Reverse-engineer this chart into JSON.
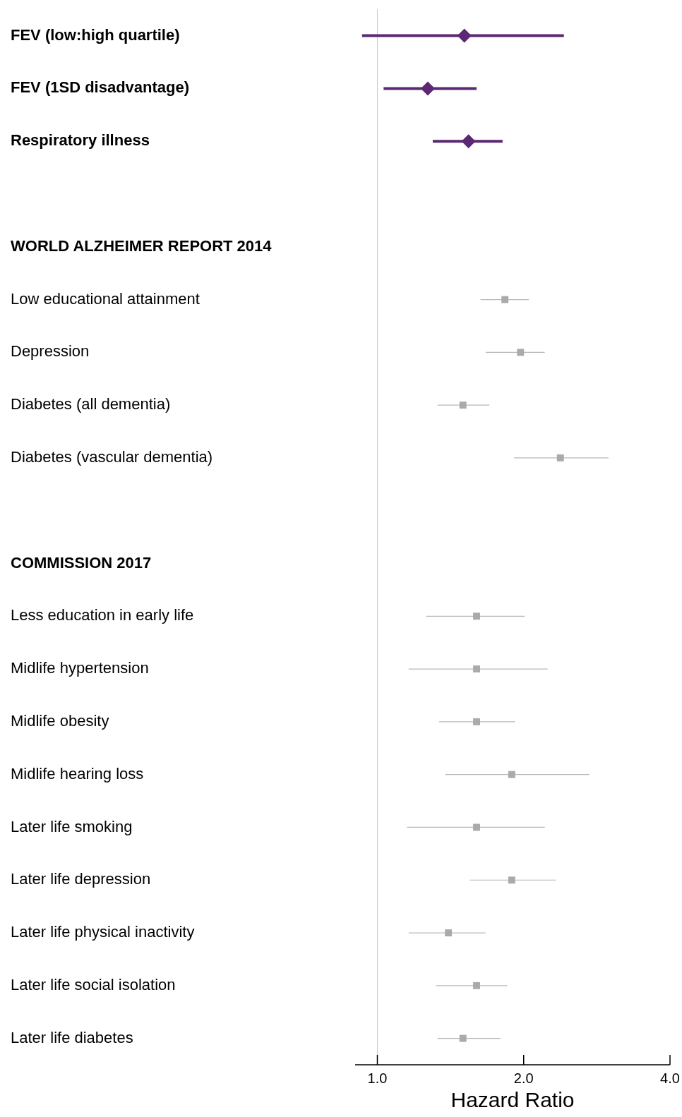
{
  "chart_data": {
    "type": "scatter",
    "orientation": "horizontal",
    "xlabel": "Hazard Ratio",
    "log": "x",
    "grid": false,
    "legend": false,
    "categories": [
      "FEV (low:high quartile)",
      "FEV (1SD disadvantage)",
      "Respiratory illness",
      null,
      "WORLD ALZHEIMER REPORT 2014",
      "Low educational attainment",
      "Depression",
      "Diabetes (all dementia)",
      "Diabetes (vascular dementia)",
      null,
      "COMMISSION 2017",
      "Less education in early life",
      "Midlife hypertension",
      "Midlife obesity",
      "Midlife hearing loss",
      "Later life smoking",
      "Later life depression",
      "Later life physical inactivity",
      "Later life social isolation",
      "Later life diabetes"
    ],
    "xlim": [
      0.9,
      4
    ],
    "xticks": [
      {
        "value": 1,
        "label": "1.0"
      },
      {
        "value": 2,
        "label": "2.0"
      },
      {
        "value": 4,
        "label": "4.0"
      }
    ],
    "ref_lines": [
      {
        "axis": "x",
        "value": 1,
        "color": "#cccccc"
      }
    ],
    "series": [
      {
        "marker": "diamond",
        "color": "#5c2873",
        "values": [
          1.51,
          1.27,
          1.54,
          null,
          null,
          null,
          null,
          null,
          null,
          null,
          null,
          null,
          null,
          null,
          null,
          null,
          null,
          null,
          null,
          null
        ],
        "errors": [
          [
            0.93,
            2.42
          ],
          [
            1.03,
            1.6
          ],
          [
            1.3,
            1.81
          ],
          null,
          null,
          null,
          null,
          null,
          null,
          null,
          null,
          null,
          null,
          null,
          null,
          null,
          null,
          null,
          null,
          null
        ]
      },
      {
        "marker": "square",
        "color": "#aaaaaa",
        "values": [
          null,
          null,
          null,
          null,
          null,
          1.83,
          1.97,
          1.5,
          2.38,
          null,
          null,
          1.6,
          1.6,
          1.6,
          1.89,
          1.6,
          1.89,
          1.4,
          1.6,
          1.5
        ],
        "errors": [
          null,
          null,
          null,
          null,
          null,
          [
            1.63,
            2.05
          ],
          [
            1.67,
            2.21
          ],
          [
            1.33,
            1.7
          ],
          [
            1.91,
            2.99
          ],
          null,
          null,
          [
            1.26,
            2.01
          ],
          [
            1.16,
            2.24
          ],
          [
            1.34,
            1.92
          ],
          [
            1.38,
            2.73
          ],
          [
            1.15,
            2.21
          ],
          [
            1.55,
            2.33
          ],
          [
            1.16,
            1.67
          ],
          [
            1.32,
            1.85
          ],
          [
            1.33,
            1.79
          ]
        ]
      }
    ]
  }
}
